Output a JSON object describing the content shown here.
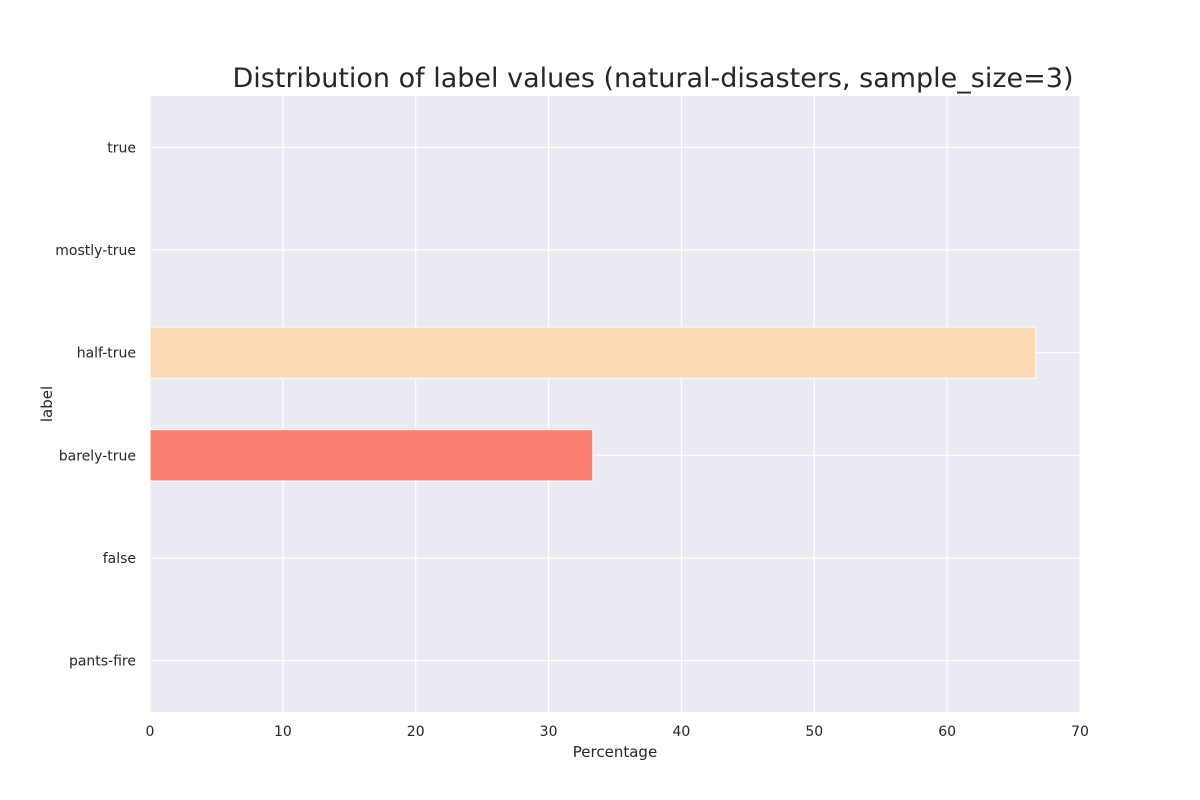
{
  "chart_data": {
    "type": "bar",
    "orientation": "horizontal",
    "title": "Distribution of label values (natural-disasters, sample_size=3)",
    "xlabel": "Percentage",
    "ylabel": "label",
    "categories": [
      "true",
      "mostly-true",
      "half-true",
      "barely-true",
      "false",
      "pants-fire"
    ],
    "values": [
      0,
      0,
      66.67,
      33.33,
      0,
      0
    ],
    "bar_colors": [
      "#2ca02c",
      "#98df8a",
      "#fdd9b5",
      "#fa8072",
      "#d62728",
      "#8b0000"
    ],
    "xlim": [
      0,
      70
    ],
    "xticks": [
      0,
      10,
      20,
      30,
      40,
      50,
      60,
      70
    ],
    "grid": true,
    "background": "#eaeaf2",
    "grid_color": "#ffffff"
  }
}
